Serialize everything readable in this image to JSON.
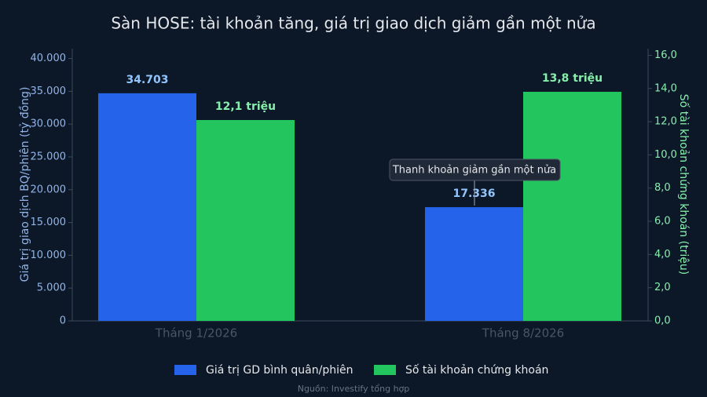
{
  "chart_data": {
    "type": "bar",
    "title": "Sàn HOSE: tài khoản tăng, giá trị giao dịch giảm gần một nửa",
    "categories": [
      "Tháng 1/2026",
      "Tháng 8/2026"
    ],
    "series": [
      {
        "name": "Giá trị GD bình quân/phiên",
        "color": "#2563eb",
        "values": [
          34703,
          17336
        ],
        "value_labels": [
          "34.703",
          "17.336"
        ]
      },
      {
        "name": "Số tài khoản chứng khoán",
        "color": "#22c55e",
        "axis": "y2",
        "values": [
          12.1,
          13.8
        ],
        "value_labels": [
          "12,1 triệu",
          "13,8 triệu"
        ]
      }
    ],
    "ylabel": "Giá trị giao dịch BQ/phiên (tỷ đồng)",
    "y2label": "Số tài khoản chứng khoán (triệu)",
    "ylim": [
      0,
      41500
    ],
    "yticks": [
      0,
      {
        "value": 5000,
        "label": "5.000"
      },
      {
        "value": 10000,
        "label": "10.000"
      },
      {
        "value": 15000,
        "label": "15.000"
      },
      {
        "value": 20000,
        "label": "20.000"
      },
      {
        "value": 25000,
        "label": "25.000"
      },
      {
        "value": 30000,
        "label": "30.000"
      },
      {
        "value": 35000,
        "label": "35.000"
      },
      {
        "value": 40000,
        "label": "40.000"
      }
    ],
    "y2lim": [
      0,
      16.4
    ],
    "y2ticks": [
      {
        "value": 0,
        "label": "0,0"
      },
      {
        "value": 2,
        "label": "2,0"
      },
      {
        "value": 4,
        "label": "4,0"
      },
      {
        "value": 6,
        "label": "6,0"
      },
      {
        "value": 8,
        "label": "8,0"
      },
      {
        "value": 10,
        "label": "10,0"
      },
      {
        "value": 12,
        "label": "12,0"
      },
      {
        "value": 14,
        "label": "14,0"
      },
      {
        "value": 16,
        "label": "16,0"
      }
    ],
    "annotation": "Thanh khoản giảm gần một nửa",
    "source": "Nguồn: Investify tổng hợp",
    "grid": false,
    "legend": "bottom"
  }
}
